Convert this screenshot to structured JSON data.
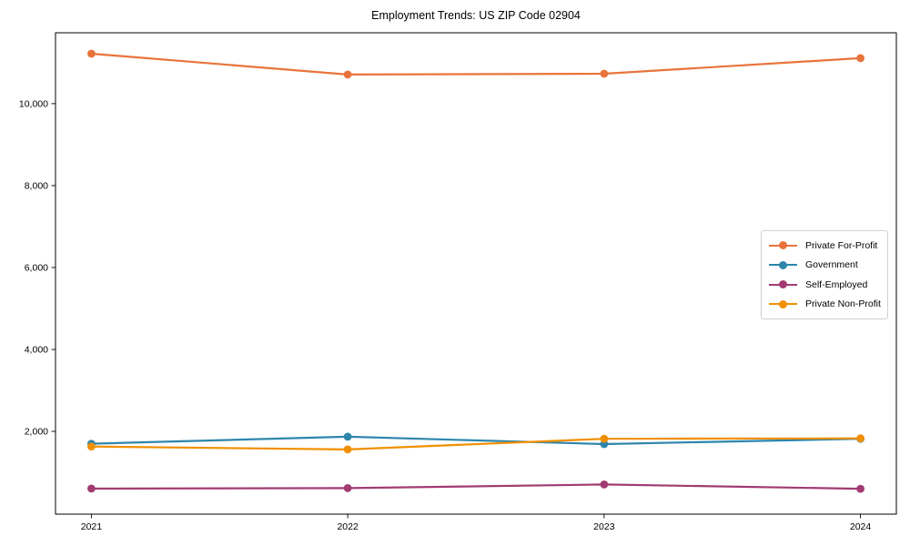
{
  "chart_data": {
    "type": "line",
    "title": "Employment Trends: US ZIP Code 02904",
    "x": [
      2021,
      2022,
      2023,
      2024
    ],
    "x_tick_labels": [
      "2021",
      "2022",
      "2023",
      "2024"
    ],
    "y_ticks": [
      2000,
      4000,
      6000,
      8000,
      10000
    ],
    "y_tick_labels": [
      "2,000",
      "4,000",
      "6,000",
      "8,000",
      "10,000"
    ],
    "xlim": [
      2020.86,
      2024.14
    ],
    "ylim": [
      -20,
      11730
    ],
    "grid": false,
    "legend_position": "center right",
    "series": [
      {
        "name": "Private For-Profit",
        "color": "#E8743B",
        "values": [
          11220,
          10710,
          10730,
          11110
        ]
      },
      {
        "name": "Government",
        "color": "#2E86AB",
        "values": [
          1700,
          1870,
          1690,
          1820
        ]
      },
      {
        "name": "Self-Employed",
        "color": "#A23B72",
        "values": [
          605,
          615,
          705,
          600
        ]
      },
      {
        "name": "Private Non-Profit",
        "color": "#F18F01",
        "values": [
          1630,
          1560,
          1820,
          1830
        ]
      }
    ],
    "axis_color": "#000000",
    "tick_label_color": "#000000"
  }
}
